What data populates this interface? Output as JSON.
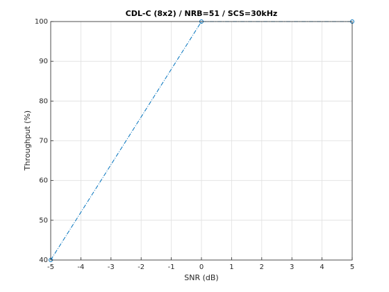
{
  "chart_data": {
    "type": "line",
    "title": "CDL-C (8x2) / NRB=51 / SCS=30kHz",
    "xlabel": "SNR (dB)",
    "ylabel": "Throughput (%)",
    "x": [
      -5,
      0,
      5
    ],
    "values": [
      40,
      100,
      100
    ],
    "color": "#0072bd",
    "xlim": [
      -5,
      5
    ],
    "xticks": [
      -5,
      -4,
      -3,
      -2,
      -1,
      0,
      1,
      2,
      3,
      4,
      5
    ],
    "ylim": [
      40,
      100
    ],
    "yticks": [
      40,
      50,
      60,
      70,
      80,
      90,
      100
    ],
    "grid": true
  }
}
